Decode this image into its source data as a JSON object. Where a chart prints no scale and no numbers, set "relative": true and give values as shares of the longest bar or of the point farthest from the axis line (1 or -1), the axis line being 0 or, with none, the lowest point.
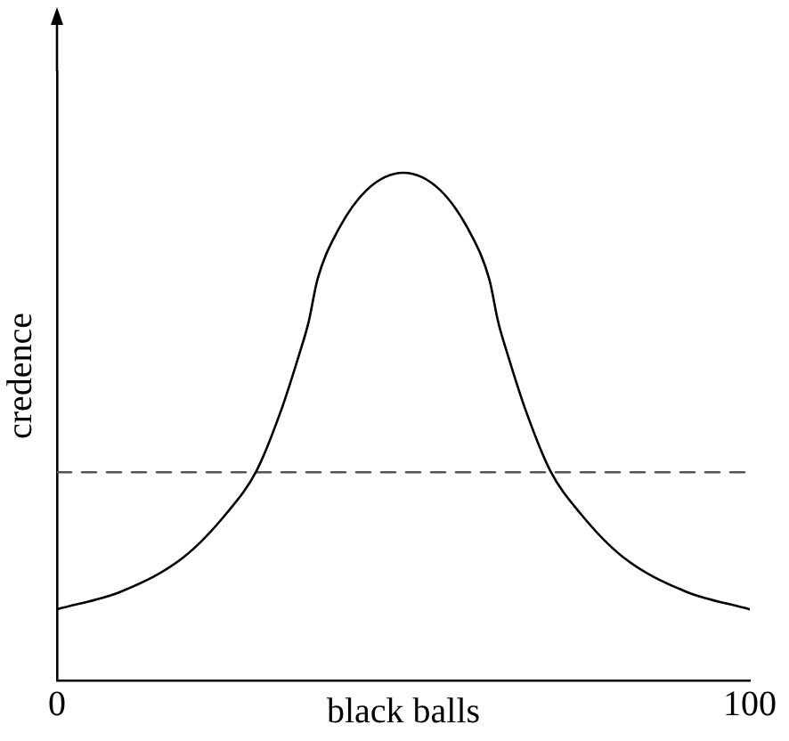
{
  "chart_data": {
    "type": "line",
    "xlabel": "black balls",
    "ylabel": "credence",
    "relative": true,
    "xlim": [
      0,
      100
    ],
    "xticks": [
      0,
      100
    ],
    "grid": false,
    "legend": false,
    "marker": "none",
    "series": [
      {
        "color": "#000000",
        "line_style": "solid",
        "x": [
          0,
          9.4,
          18.3,
          24.4,
          28.8,
          32.4,
          35,
          36.3,
          37.6,
          40.3,
          44.7,
          50,
          55.3,
          59.7,
          62.4,
          63.7,
          65,
          67.6,
          71.2,
          75.6,
          81.7,
          90.6,
          100
        ],
        "values": [
          0.14,
          0.176,
          0.243,
          0.328,
          0.413,
          0.534,
          0.644,
          0.705,
          0.79,
          0.88,
          0.966,
          1,
          0.966,
          0.88,
          0.79,
          0.705,
          0.644,
          0.534,
          0.413,
          0.328,
          0.243,
          0.176,
          0.14
        ]
      },
      {
        "color": "#555555",
        "line_style": "dashed",
        "x": [
          0,
          100
        ],
        "values": [
          0.41,
          0.41
        ]
      }
    ]
  }
}
